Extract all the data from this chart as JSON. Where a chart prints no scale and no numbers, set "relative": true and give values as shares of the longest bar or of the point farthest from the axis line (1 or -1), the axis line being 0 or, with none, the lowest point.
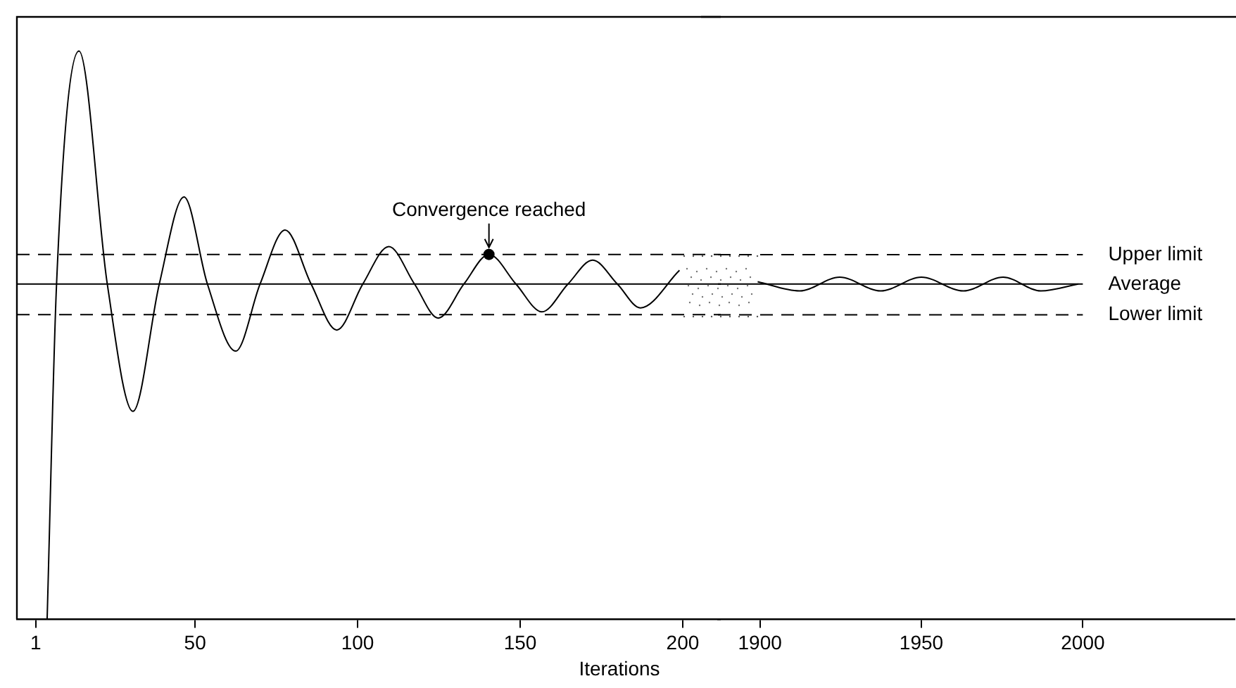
{
  "chart_data": [
    {
      "type": "line",
      "xlabel": "Iterations",
      "relative": true,
      "marker": "none",
      "xlim": [
        -4.8,
        211.7
      ],
      "xticks": [
        1,
        50,
        100,
        150,
        200
      ],
      "series": [
        {
          "color": "#000000",
          "x": [
            4.5,
            7.4,
            14.3,
            23,
            30.9,
            39,
            46.6,
            53.8,
            62.5,
            70,
            77.7,
            85.7,
            93.6,
            101.6,
            109.6,
            117.5,
            124.8,
            132.7,
            140.4,
            148.7,
            156.7,
            164.7,
            172.3,
            179.9,
            187,
            199
          ],
          "values": [
            0,
            0.59,
            1,
            0.59,
            0.366,
            0.59,
            0.743,
            0.59,
            0.472,
            0.59,
            0.685,
            0.59,
            0.509,
            0.59,
            0.656,
            0.59,
            0.53,
            0.59,
            0.642,
            0.59,
            0.541,
            0.59,
            0.632,
            0.59,
            0.548,
            0.614
          ]
        }
      ],
      "ref_lines": [
        {
          "axis": "y",
          "value": 0.642,
          "line_style": "dashed",
          "color": "#000000"
        },
        {
          "axis": "y",
          "value": 0.59,
          "line_style": "solid",
          "color": "#000000"
        },
        {
          "axis": "y",
          "value": 0.536,
          "line_style": "dashed",
          "color": "#000000"
        }
      ],
      "annotations": [
        {
          "text": "Convergence reached",
          "x": 140.4,
          "y": 0.642
        }
      ]
    },
    {
      "type": "line",
      "relative": true,
      "marker": "none",
      "xlim": [
        1887,
        2047
      ],
      "xticks": [
        1900,
        1950,
        2000
      ],
      "series": [
        {
          "color": "#000000",
          "x": [
            1899.3,
            1912.3,
            1924.7,
            1937.4,
            1950,
            1963,
            1975.3,
            1987,
            1998.6
          ],
          "values": [
            0.987,
            0.96,
            1,
            0.96,
            1,
            0.96,
            1,
            0.96,
            0.98
          ]
        }
      ],
      "ref_lines": [
        {
          "axis": "y",
          "value": 1.066,
          "label": "Upper limit",
          "line_style": "dashed",
          "color": "#000000"
        },
        {
          "axis": "y",
          "value": 0.98,
          "label": "Average",
          "line_style": "solid",
          "color": "#000000"
        },
        {
          "axis": "y",
          "value": 0.89,
          "label": "Lower limit",
          "line_style": "dashed",
          "color": "#000000"
        }
      ]
    }
  ]
}
